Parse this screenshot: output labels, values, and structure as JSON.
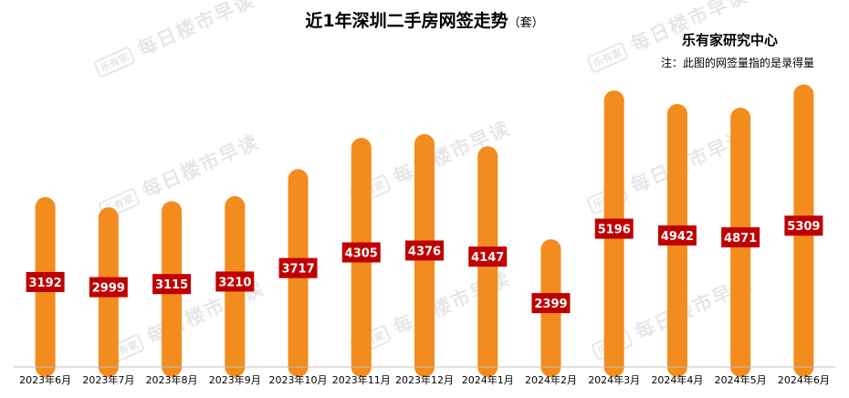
{
  "header": {
    "title": "近1年深圳二手房网签走势",
    "unit": "（套）",
    "source": "乐有家研究中心",
    "note": "注：此图的网签量指的是录得量"
  },
  "watermark": {
    "logo": "乐有家",
    "text": "每日楼市早读"
  },
  "colors": {
    "bar": "#F28C1E",
    "label_bg": "#C00000",
    "label_text": "#FFFFFF",
    "axis": "#BFBFBF"
  },
  "chart_data": {
    "type": "bar",
    "title": "近1年深圳二手房网签走势",
    "unit": "套",
    "categories": [
      "2023年6月",
      "2023年7月",
      "2023年8月",
      "2023年9月",
      "2023年10月",
      "2023年11月",
      "2023年12月",
      "2024年1月",
      "2024年2月",
      "2024年3月",
      "2024年4月",
      "2024年5月",
      "2024年6月"
    ],
    "values": [
      3192,
      2999,
      3115,
      3210,
      3717,
      4305,
      4376,
      4147,
      2399,
      5196,
      4942,
      4871,
      5309
    ],
    "data_labels": true,
    "grid": false,
    "legend": "none"
  }
}
